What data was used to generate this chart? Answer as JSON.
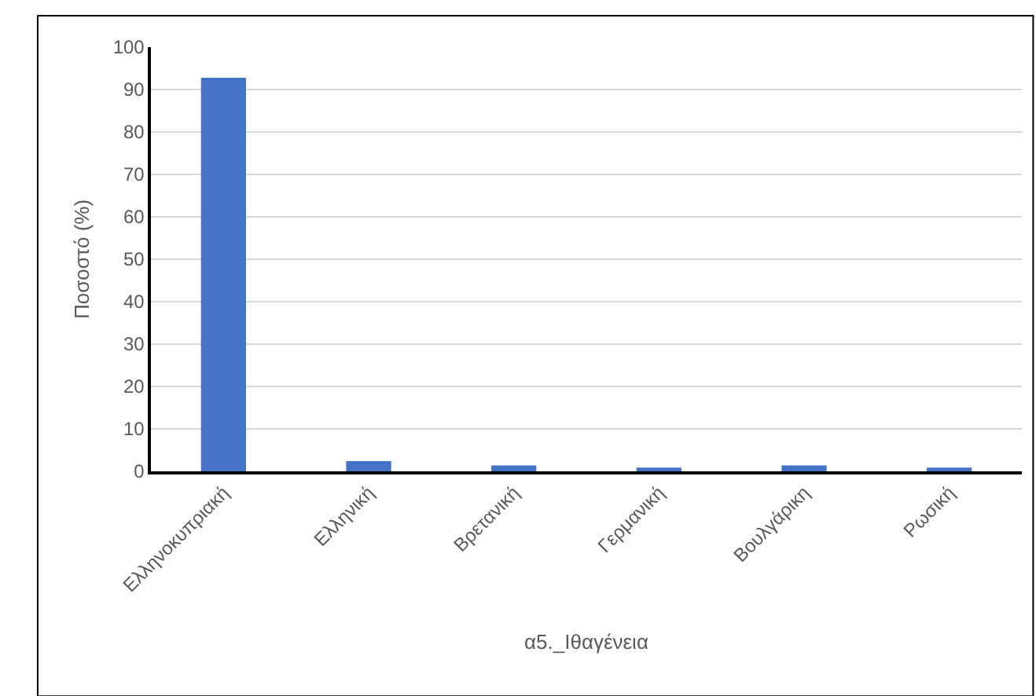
{
  "chart_data": {
    "type": "bar",
    "xlabel": "α5._Ιθαγένεια",
    "ylabel": "Ποσοστό (%)",
    "categories": [
      "Ελληνοκυπριακή",
      "Ελληνική",
      "Βρετανική",
      "Γερμανική",
      "Βουλγάρικη",
      "Ρωσική"
    ],
    "values": [
      92.8,
      2.4,
      1.4,
      0.9,
      1.4,
      0.9
    ],
    "color": "#4472c4",
    "ylim": [
      0,
      100
    ],
    "yticks": [
      0,
      10,
      20,
      30,
      40,
      50,
      60,
      70,
      80,
      90,
      100
    ],
    "grid": "y"
  }
}
